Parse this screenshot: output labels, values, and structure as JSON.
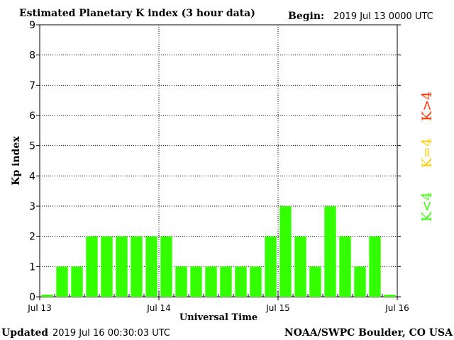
{
  "header": {
    "title": "Estimated Planetary K index (3 hour data)",
    "begin_label": "Begin:",
    "begin_value": "2019 Jul 13 0000 UTC"
  },
  "footer": {
    "updated_label": "Updated",
    "updated_value": "2019 Jul 16 00:30:03 UTC",
    "source": "NOAA/SWPC Boulder, CO USA"
  },
  "legend": {
    "high": {
      "label": "K>4",
      "color": "#ff3300"
    },
    "mid": {
      "label": "K=4",
      "color": "#ffcc00"
    },
    "low": {
      "label": "K<4",
      "color": "#33ff00"
    }
  },
  "chart_data": {
    "type": "bar",
    "title": "Estimated Planetary K index (3 hour data)",
    "xlabel": "Universal Time",
    "ylabel": "Kp index",
    "ylim": [
      0,
      9
    ],
    "yticks": [
      0,
      1,
      2,
      3,
      4,
      5,
      6,
      7,
      8,
      9
    ],
    "xtick_labels": [
      "Jul 13",
      "Jul 14",
      "Jul 15",
      "Jul 16"
    ],
    "bars_per_day": 8,
    "bar_color": "#33ff00",
    "grid": true,
    "values": [
      0,
      1,
      1,
      2,
      2,
      2,
      2,
      2,
      2,
      1,
      1,
      1,
      1,
      1,
      1,
      2,
      3,
      2,
      1,
      3,
      2,
      1,
      2,
      0
    ]
  }
}
